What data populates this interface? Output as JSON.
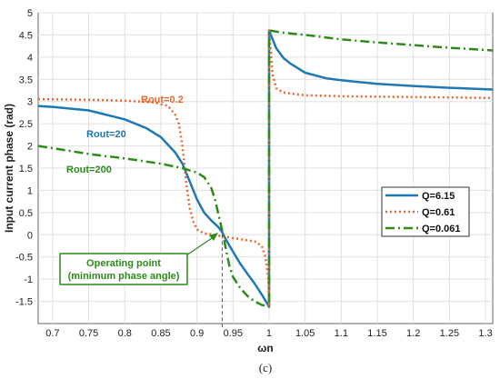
{
  "chart_data": {
    "type": "line",
    "xlabel": "ωn",
    "ylabel": "Input current phase (rad)",
    "caption": "(c)",
    "xlim": [
      0.68,
      1.31
    ],
    "ylim": [
      -2,
      5
    ],
    "xticks": [
      "0.7",
      "0.75",
      "0.8",
      "0.85",
      "0.9",
      "0.95",
      "1",
      "1.05",
      "1.1",
      "1.15",
      "1.2",
      "1.25",
      "1.3"
    ],
    "xtick_values": [
      0.7,
      0.75,
      0.8,
      0.85,
      0.9,
      0.95,
      1.0,
      1.05,
      1.1,
      1.15,
      1.2,
      1.25,
      1.3
    ],
    "yticks": [
      "-1.5",
      "-1",
      "-0.5",
      "0",
      "0.5",
      "1",
      "1.5",
      "2",
      "2.5",
      "3",
      "3.5",
      "4",
      "4.5",
      "5"
    ],
    "ytick_values": [
      -1.5,
      -1,
      -0.5,
      0,
      0.5,
      1,
      1.5,
      2,
      2.5,
      3,
      3.5,
      4,
      4.5,
      5
    ],
    "grid": true,
    "legend_position": "right",
    "series": [
      {
        "name": "Q=6.15",
        "color": "#1f77b4",
        "style": "solid",
        "x": [
          0.68,
          0.7,
          0.75,
          0.8,
          0.83,
          0.85,
          0.87,
          0.88,
          0.89,
          0.9,
          0.91,
          0.92,
          0.93,
          0.935,
          0.94,
          0.95,
          0.96,
          0.97,
          0.98,
          0.99,
          1.0,
          1.0,
          1.005,
          1.01,
          1.02,
          1.03,
          1.05,
          1.08,
          1.1,
          1.15,
          1.2,
          1.25,
          1.31
        ],
        "y": [
          2.9,
          2.88,
          2.8,
          2.6,
          2.4,
          2.2,
          1.85,
          1.6,
          1.2,
          0.8,
          0.5,
          0.32,
          0.17,
          0.06,
          -0.1,
          -0.38,
          -0.65,
          -0.88,
          -1.1,
          -1.35,
          -1.62,
          4.6,
          4.4,
          4.2,
          3.98,
          3.85,
          3.65,
          3.52,
          3.48,
          3.4,
          3.35,
          3.31,
          3.27
        ]
      },
      {
        "name": "Q=0.61",
        "color": "#e8672e",
        "style": "dotted",
        "x": [
          0.68,
          0.7,
          0.75,
          0.8,
          0.84,
          0.86,
          0.87,
          0.875,
          0.88,
          0.885,
          0.89,
          0.895,
          0.9,
          0.91,
          0.92,
          0.94,
          0.96,
          0.98,
          0.99,
          0.995,
          0.999,
          1.0,
          1.0,
          1.005,
          1.01,
          1.02,
          1.05,
          1.1,
          1.2,
          1.31
        ],
        "y": [
          3.05,
          3.05,
          3.04,
          3.02,
          2.98,
          2.9,
          2.7,
          2.5,
          2.0,
          1.2,
          0.6,
          0.3,
          0.12,
          0.03,
          0.01,
          -0.05,
          -0.1,
          -0.15,
          -0.25,
          -0.5,
          -1.0,
          -1.62,
          4.6,
          3.6,
          3.3,
          3.2,
          3.14,
          3.12,
          3.1,
          3.08
        ]
      },
      {
        "name": "Q=0.061",
        "color": "#2e8b1a",
        "style": "dashdot",
        "x": [
          0.68,
          0.7,
          0.75,
          0.8,
          0.85,
          0.88,
          0.9,
          0.91,
          0.92,
          0.925,
          0.93,
          0.935,
          0.94,
          0.945,
          0.95,
          0.96,
          0.97,
          0.98,
          0.99,
          1.0,
          1.0,
          1.02,
          1.05,
          1.1,
          1.15,
          1.2,
          1.25,
          1.31
        ],
        "y": [
          2.0,
          1.95,
          1.82,
          1.72,
          1.6,
          1.5,
          1.4,
          1.3,
          1.05,
          0.8,
          0.45,
          0.1,
          -0.3,
          -0.7,
          -0.95,
          -1.2,
          -1.38,
          -1.5,
          -1.58,
          -1.62,
          4.6,
          4.55,
          4.5,
          4.4,
          4.33,
          4.27,
          4.21,
          4.15
        ]
      }
    ],
    "annotations": {
      "rout_02": "Rout=0.2",
      "rout_20": "Rout=20",
      "rout_200": "Rout=200",
      "operating_point_line1": "Operating point",
      "operating_point_line2": "(minimum phase angle)",
      "operating_point_x": 0.935
    }
  }
}
